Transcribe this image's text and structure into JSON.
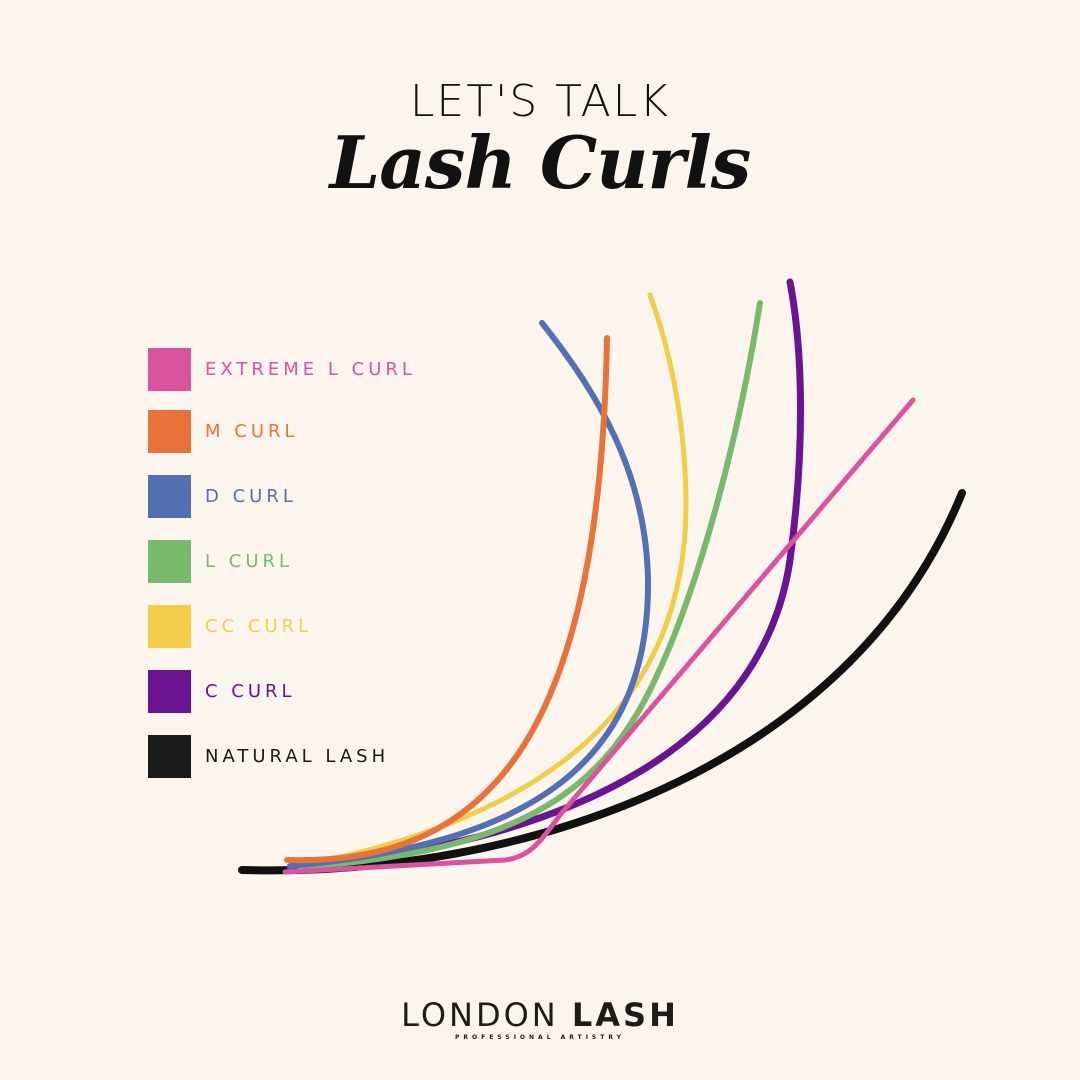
{
  "header": {
    "pretitle": "LET'S TALK",
    "title": "Lash Curls"
  },
  "legend": [
    {
      "label": "EXTREME L CURL",
      "color": "#d9539f"
    },
    {
      "label": "M CURL",
      "color": "#e8733a"
    },
    {
      "label": "D CURL",
      "color": "#5470b3"
    },
    {
      "label": "L CURL",
      "color": "#79b96c"
    },
    {
      "label": "CC CURL",
      "color": "#f2cd4a"
    },
    {
      "label": "C CURL",
      "color": "#691591"
    },
    {
      "label": "NATURAL LASH",
      "color": "#1a1a1a"
    }
  ],
  "logo": {
    "name_light": "LONDON",
    "name_bold": "LASH",
    "tagline": "PROFESSIONAL ARTISTRY"
  },
  "background": "#fcf5ee"
}
